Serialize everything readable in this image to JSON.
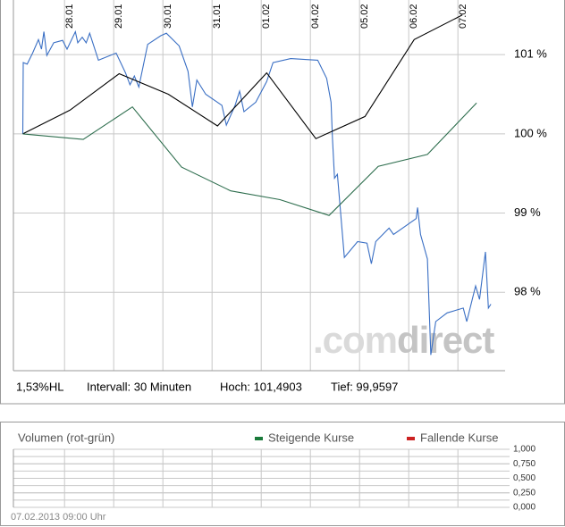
{
  "chart_data": [
    {
      "type": "line",
      "xlim": [
        -1.04,
        8.96
      ],
      "xticks": [
        {
          "value": 0,
          "label": "28.01"
        },
        {
          "value": 1,
          "label": "29.01"
        },
        {
          "value": 2,
          "label": "30.01"
        },
        {
          "value": 3,
          "label": "31.01"
        },
        {
          "value": 4,
          "label": "01.02"
        },
        {
          "value": 5,
          "label": "04.02"
        },
        {
          "value": 6,
          "label": "05.02"
        },
        {
          "value": 7,
          "label": "06.02"
        },
        {
          "value": 8,
          "label": "07.02"
        }
      ],
      "ylim": [
        97.01,
        101.69
      ],
      "yticks": [
        {
          "value": 101,
          "label": "101 %"
        },
        {
          "value": 100,
          "label": "100 %"
        },
        {
          "value": 99,
          "label": "99 %"
        },
        {
          "value": 98,
          "label": "98 %"
        }
      ],
      "grid": true,
      "watermark": [
        ".com",
        "direct"
      ],
      "footer": [
        "1,53%HL",
        "Intervall: 30 Minuten",
        "Hoch: 101,4903",
        "Tief: 99,9597"
      ],
      "series": [
        {
          "color": "#3a6fc4",
          "x": [
            -0.85,
            -0.84,
            -0.76,
            -0.65,
            -0.53,
            -0.47,
            -0.42,
            -0.36,
            -0.22,
            -0.04,
            0.05,
            0.22,
            0.27,
            0.36,
            0.44,
            0.51,
            0.69,
            1.05,
            1.24,
            1.33,
            1.42,
            1.51,
            1.69,
            1.96,
            2.07,
            2.33,
            2.51,
            2.6,
            2.69,
            2.87,
            3.2,
            3.29,
            3.47,
            3.56,
            3.65,
            3.89,
            4.11,
            4.24,
            4.6,
            5.15,
            5.33,
            5.42,
            5.45,
            5.49,
            5.55,
            5.69,
            5.96,
            6.15,
            6.24,
            6.33,
            6.6,
            6.69,
            7.15,
            7.18,
            7.24,
            7.38,
            7.45,
            7.55,
            7.78,
            8.11,
            8.18,
            8.36,
            8.44,
            8.56,
            8.62,
            8.67
          ],
          "values": [
            100.0,
            100.9,
            100.88,
            101.02,
            101.19,
            101.07,
            101.29,
            100.99,
            101.15,
            101.18,
            101.07,
            101.29,
            101.15,
            101.22,
            101.15,
            101.27,
            100.93,
            101.02,
            100.77,
            100.62,
            100.73,
            100.59,
            101.13,
            101.24,
            101.27,
            101.11,
            100.79,
            100.34,
            100.68,
            100.5,
            100.36,
            100.11,
            100.36,
            100.54,
            100.28,
            100.4,
            100.66,
            100.9,
            100.95,
            100.93,
            100.7,
            100.4,
            99.94,
            99.44,
            99.49,
            98.44,
            98.64,
            98.62,
            98.36,
            98.64,
            98.81,
            98.73,
            98.93,
            99.07,
            98.73,
            98.42,
            97.21,
            97.63,
            97.74,
            97.8,
            97.63,
            98.08,
            97.91,
            98.51,
            97.8,
            97.85
          ]
        },
        {
          "color": "#000000",
          "x": [
            -0.85,
            0.11,
            1.11,
            2.11,
            3.11,
            4.11,
            5.11,
            6.11,
            7.11,
            8.09
          ],
          "values": [
            100.0,
            100.3,
            100.76,
            100.5,
            100.1,
            100.77,
            99.94,
            100.22,
            101.19,
            101.5
          ]
        },
        {
          "color": "#2e6e4e",
          "x": [
            -0.85,
            0.38,
            1.38,
            2.38,
            3.38,
            4.38,
            5.38,
            6.38,
            7.38,
            8.38
          ],
          "values": [
            100.0,
            99.93,
            100.34,
            99.58,
            99.28,
            99.17,
            98.97,
            99.59,
            99.74,
            100.39
          ]
        }
      ]
    },
    {
      "type": "bar",
      "title": "Volumen (rot-grün)",
      "ylim": [
        0,
        1
      ],
      "yticks": [
        {
          "value": 1,
          "label": "1,000"
        },
        {
          "value": 0.75,
          "label": "0,750"
        },
        {
          "value": 0.5,
          "label": "0,500"
        },
        {
          "value": 0.25,
          "label": "0,250"
        },
        {
          "value": 0,
          "label": "0,000"
        }
      ],
      "grid": true,
      "series": [
        {
          "name": "Steigende Kurse",
          "color": "#1a7a3a",
          "values": []
        },
        {
          "name": "Fallende Kurse",
          "color": "#cc2222",
          "values": []
        }
      ],
      "timestamp": "07.02.2013 09:00 Uhr"
    }
  ]
}
